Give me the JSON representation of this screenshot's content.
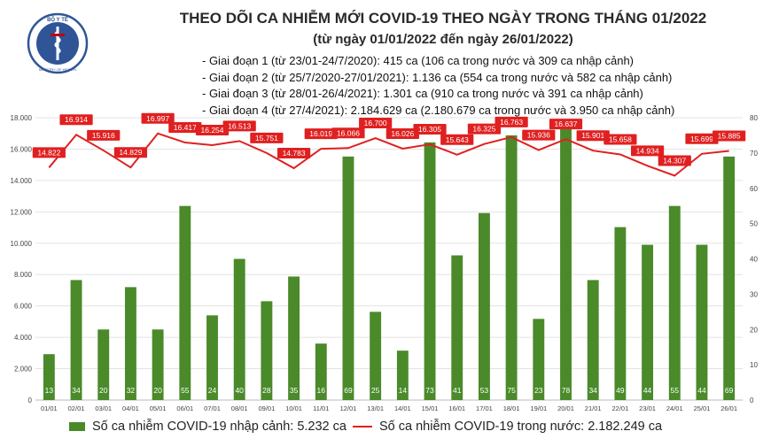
{
  "header": {
    "title": "THEO DÕI CA NHIỄM MỚI COVID-19 THEO NGÀY TRONG THÁNG 01/2022",
    "subtitle": "(từ ngày 01/01/2022 đến ngày 26/01/2022)",
    "notes": [
      "- Giai đoạn 1 (từ 23/01-24/7/2020): 415 ca (106 ca trong nước và 309 ca nhập cảnh)",
      "- Giai đoạn 2 (từ 25/7/2020-27/01/2021): 1.136 ca (554 ca trong nước và 582 ca nhập cảnh)",
      "- Giai đoạn 3 (từ 28/01-26/4/2021): 1.301 ca (910 ca trong nước và 391 ca nhập cảnh)",
      "- Giai đoạn 4 (từ 27/4/2021): 2.184.629 ca (2.180.679 ca trong nước và 3.950 ca nhập cảnh)"
    ]
  },
  "logo": {
    "text_top": "BỘ Y TẾ",
    "text_bottom": "MINISTRY OF HEALTH"
  },
  "colors": {
    "bar": "#4a8a2a",
    "line": "#e02020",
    "grid": "#e3e3e3",
    "logo_blue": "#2f5597",
    "logo_red": "#c00000"
  },
  "legend": {
    "bar_label": "Số ca nhiễm COVID-19 nhập cảnh: 5.232 ca",
    "line_label": "Số ca nhiễm COVID-19 trong nước: 2.182.249 ca"
  },
  "chart_data": {
    "type": "bar+line",
    "categories": [
      "01/01",
      "02/01",
      "03/01",
      "04/01",
      "05/01",
      "06/01",
      "07/01",
      "08/01",
      "09/01",
      "10/01",
      "11/01",
      "12/01",
      "13/01",
      "14/01",
      "15/01",
      "16/01",
      "17/01",
      "18/01",
      "19/01",
      "20/01",
      "21/01",
      "22/01",
      "23/01",
      "24/01",
      "25/01",
      "26/01"
    ],
    "left_axis": {
      "ylim": [
        0,
        18000
      ],
      "ticks": [
        {
          "value": 0,
          "label": "0"
        },
        {
          "value": 2000,
          "label": "2.000"
        },
        {
          "value": 4000,
          "label": "4.000"
        },
        {
          "value": 6000,
          "label": "6.000"
        },
        {
          "value": 8000,
          "label": "8.000"
        },
        {
          "value": 10000,
          "label": "10.000"
        },
        {
          "value": 12000,
          "label": "12.000"
        },
        {
          "value": 14000,
          "label": "14.000"
        },
        {
          "value": 16000,
          "label": "16.000"
        },
        {
          "value": 18000,
          "label": "18.000"
        }
      ]
    },
    "right_axis": {
      "ylim": [
        0,
        80
      ],
      "ticks": [
        {
          "value": 0,
          "label": "0"
        },
        {
          "value": 10,
          "label": "10"
        },
        {
          "value": 20,
          "label": "20"
        },
        {
          "value": 30,
          "label": "30"
        },
        {
          "value": 40,
          "label": "40"
        },
        {
          "value": 50,
          "label": "50"
        },
        {
          "value": 60,
          "label": "60"
        },
        {
          "value": 70,
          "label": "70"
        },
        {
          "value": 80,
          "label": "80"
        }
      ]
    },
    "series": [
      {
        "name": "Số ca nhiễm COVID-19 nhập cảnh: 5.232 ca",
        "type": "bar",
        "axis": "right",
        "values": [
          13,
          34,
          20,
          32,
          20,
          55,
          24,
          40,
          28,
          35,
          16,
          69,
          25,
          14,
          73,
          41,
          53,
          75,
          23,
          78,
          34,
          49,
          44,
          55,
          44,
          69
        ],
        "labels": [
          "13",
          "34",
          "20",
          "32",
          "20",
          "55",
          "24",
          "40",
          "28",
          "35",
          "16",
          "69",
          "25",
          "14",
          "73",
          "41",
          "53",
          "75",
          "23",
          "78",
          "34",
          "49",
          "44",
          "55",
          "44",
          "69"
        ]
      },
      {
        "name": "Số ca nhiễm COVID-19 trong nước: 2.182.249 ca",
        "type": "line",
        "axis": "left",
        "values": [
          14822,
          16914,
          15916,
          14829,
          16997,
          16417,
          16254,
          16513,
          15751,
          14783,
          16019,
          16066,
          16700,
          16026,
          16305,
          15643,
          16325,
          16763,
          15936,
          16637,
          15901,
          15658,
          14934,
          14307,
          15699,
          15885
        ],
        "labels": [
          "14.822",
          "16.914",
          "15.916",
          "14.829",
          "16.997",
          "16.417",
          "16.254",
          "16.513",
          "15.751",
          "14.783",
          "16.019",
          "16.066",
          "16.700",
          "16.026",
          "16.305",
          "15.643",
          "16.325",
          "16.763",
          "15.936",
          "16.637",
          "15.901",
          "15.658",
          "14.934",
          "14.307",
          "15.699",
          "15.885"
        ]
      }
    ],
    "grid": true,
    "legend_position": "bottom"
  }
}
